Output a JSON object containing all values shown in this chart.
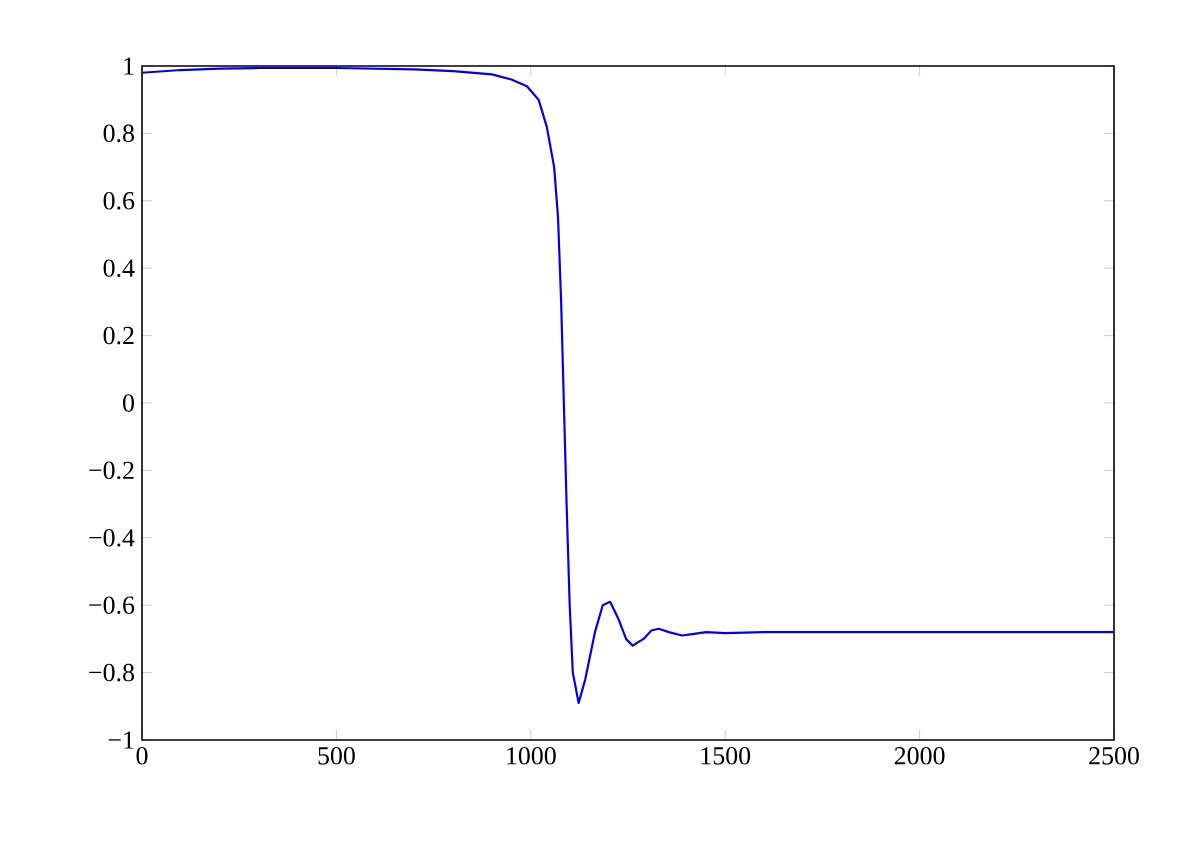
{
  "chart_data": {
    "type": "line",
    "x": [
      0,
      100,
      200,
      300,
      500,
      700,
      800,
      900,
      950,
      990,
      1020,
      1041,
      1060,
      1070,
      1078,
      1085,
      1092,
      1100,
      1108,
      1123,
      1140,
      1165,
      1185,
      1204,
      1225,
      1245,
      1262,
      1290,
      1310,
      1329,
      1355,
      1389,
      1420,
      1451,
      1500,
      1600,
      2000,
      2500
    ],
    "series": [
      {
        "color": "#0000ee",
        "values": [
          0.98,
          0.988,
          0.992,
          0.994,
          0.994,
          0.99,
          0.985,
          0.975,
          0.96,
          0.94,
          0.9,
          0.82,
          0.7,
          0.55,
          0.3,
          0,
          -0.3,
          -0.6,
          -0.8,
          -0.89,
          -0.82,
          -0.68,
          -0.6,
          -0.59,
          -0.64,
          -0.7,
          -0.72,
          -0.7,
          -0.675,
          -0.67,
          -0.68,
          -0.69,
          -0.685,
          -0.68,
          -0.683,
          -0.68,
          -0.68,
          -0.68
        ]
      }
    ],
    "xlim": [
      0,
      2500
    ],
    "ylim": [
      -1,
      1
    ],
    "xticks": [
      0,
      500,
      1000,
      1500,
      2000,
      2500
    ],
    "yticks": [
      {
        "value": -1,
        "label": "−1"
      },
      {
        "value": -0.8,
        "label": "−0.8"
      },
      {
        "value": -0.6,
        "label": "−0.6"
      },
      {
        "value": -0.4,
        "label": "−0.4"
      },
      {
        "value": -0.2,
        "label": "−0.2"
      },
      0,
      0.2,
      0.4,
      0.6,
      0.8,
      1
    ],
    "grid": false,
    "marker": "none",
    "line_style": "solid"
  }
}
